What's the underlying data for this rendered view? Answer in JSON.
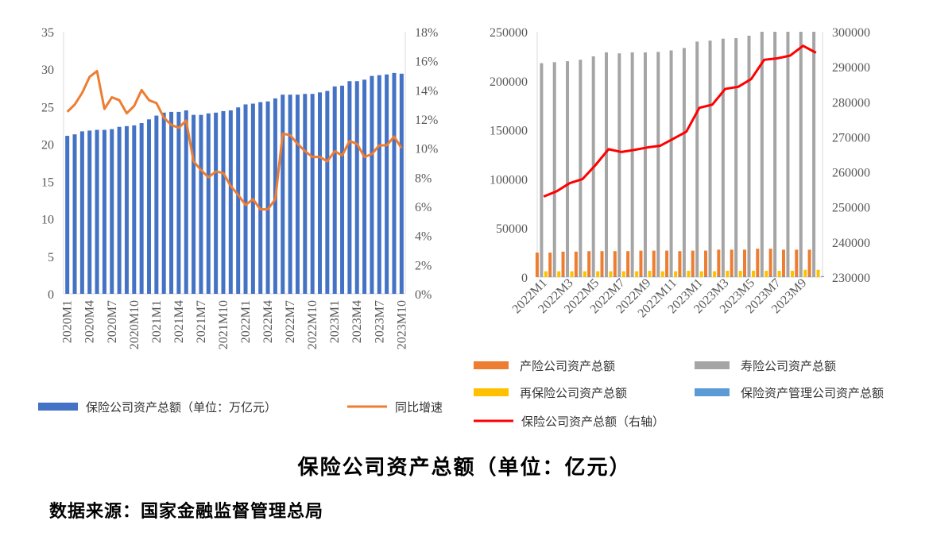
{
  "title": "保险公司资产总额（单位：亿元）",
  "source": "数据来源：国家金融监督管理总局",
  "chart_data": [
    {
      "type": "bar+line",
      "categories": [
        "2020M1",
        "2020M2",
        "2020M3",
        "2020M4",
        "2020M5",
        "2020M6",
        "2020M7",
        "2020M8",
        "2020M9",
        "2020M10",
        "2020M11",
        "2020M12",
        "2021M1",
        "2021M2",
        "2021M3",
        "2021M4",
        "2021M5",
        "2021M6",
        "2021M7",
        "2021M8",
        "2021M9",
        "2021M10",
        "2021M11",
        "2021M12",
        "2022M1",
        "2022M2",
        "2022M3",
        "2022M4",
        "2022M5",
        "2022M6",
        "2022M7",
        "2022M8",
        "2022M9",
        "2022M10",
        "2022M11",
        "2022M12",
        "2023M1",
        "2023M2",
        "2023M3",
        "2023M4",
        "2023M5",
        "2023M6",
        "2023M7",
        "2023M8",
        "2023M9",
        "2023M10"
      ],
      "series": [
        {
          "name": "保险公司资产总额（单位：万亿元）",
          "type": "bar",
          "axis": "left",
          "color": "#4472C4",
          "values": [
            21.1,
            21.3,
            21.7,
            21.8,
            21.9,
            21.9,
            22.0,
            22.3,
            22.4,
            22.5,
            22.8,
            23.3,
            23.8,
            24.2,
            24.3,
            24.3,
            24.5,
            23.9,
            23.9,
            24.1,
            24.2,
            24.4,
            24.5,
            24.9,
            25.3,
            25.4,
            25.6,
            25.7,
            26.1,
            26.6,
            26.6,
            26.6,
            26.7,
            26.7,
            26.9,
            27.1,
            27.7,
            27.8,
            28.4,
            28.4,
            28.6,
            29.1,
            29.2,
            29.3,
            29.5,
            29.4
          ]
        },
        {
          "name": "同比增速",
          "type": "line",
          "axis": "right",
          "color": "#ED7D31",
          "values": [
            12.5,
            13.0,
            13.8,
            14.9,
            15.3,
            12.7,
            13.5,
            13.3,
            12.4,
            12.9,
            14.0,
            13.3,
            13.1,
            12.1,
            11.6,
            11.4,
            11.9,
            9.1,
            8.5,
            8.0,
            8.4,
            8.3,
            7.4,
            6.8,
            6.1,
            6.5,
            5.8,
            5.8,
            6.5,
            11.0,
            10.9,
            10.3,
            9.8,
            9.4,
            9.4,
            9.1,
            9.8,
            9.5,
            10.5,
            10.3,
            9.4,
            9.6,
            10.2,
            10.2,
            10.8,
            10.0
          ]
        }
      ],
      "ylim": [
        0,
        35
      ],
      "yticks": [
        "0",
        "5",
        "10",
        "15",
        "20",
        "25",
        "30",
        "35"
      ],
      "y2lim": [
        0,
        18
      ],
      "y2ticks": [
        "0%",
        "2%",
        "4%",
        "6%",
        "8%",
        "10%",
        "12%",
        "14%",
        "16%",
        "18%"
      ],
      "xtick_labels": [
        "2020M1",
        "2020M4",
        "2020M7",
        "2020M10",
        "2021M1",
        "2021M4",
        "2021M7",
        "2021M10",
        "2022M1",
        "2022M4",
        "2022M7",
        "2022M10",
        "2023M1",
        "2023M4",
        "2023M7",
        "2023M10"
      ],
      "legend": "bottom"
    },
    {
      "type": "bar+line",
      "categories": [
        "2022M1",
        "2022M2",
        "2022M3",
        "2022M4",
        "2022M5",
        "2022M6",
        "2022M7",
        "2022M8",
        "2022M9",
        "2022M10",
        "2022M11",
        "2022M12",
        "2023M1",
        "2023M2",
        "2023M3",
        "2023M4",
        "2023M5",
        "2023M6",
        "2023M7",
        "2023M8",
        "2023M9",
        "2023M10"
      ],
      "series": [
        {
          "name": "产险公司资产总额",
          "type": "bar",
          "axis": "left",
          "color": "#ED7D31",
          "values": [
            25000,
            25000,
            26000,
            26000,
            26500,
            26500,
            26500,
            26500,
            27000,
            27000,
            27000,
            26500,
            27000,
            27000,
            28000,
            28000,
            28000,
            29000,
            29000,
            28000,
            28000,
            28000
          ]
        },
        {
          "name": "寿险公司资产总额",
          "type": "bar",
          "axis": "left",
          "color": "#A5A5A5",
          "values": [
            218000,
            219000,
            220000,
            221500,
            225000,
            229000,
            228000,
            229000,
            229000,
            229500,
            231000,
            233500,
            240000,
            241000,
            243000,
            243500,
            246000,
            251000,
            252000,
            253000,
            254000,
            253000
          ]
        },
        {
          "name": "再保险公司资产总额",
          "type": "bar",
          "axis": "left",
          "color": "#FFC000",
          "values": [
            6000,
            6000,
            6000,
            6000,
            6000,
            6000,
            6000,
            6000,
            6500,
            6000,
            6000,
            6500,
            6000,
            6000,
            6500,
            6500,
            6500,
            6500,
            6500,
            6500,
            7500,
            7500
          ]
        },
        {
          "name": "保险资产管理公司资产总额",
          "type": "bar",
          "axis": "left",
          "color": "#5B9BD5",
          "values": [
            800,
            800,
            800,
            800,
            800,
            800,
            800,
            800,
            800,
            800,
            800,
            800,
            900,
            900,
            900,
            900,
            900,
            900,
            900,
            900,
            1000,
            1000
          ]
        },
        {
          "name": "保险公司资产总额（右轴）",
          "type": "line",
          "axis": "right",
          "color": "#FF0000",
          "values": [
            253000,
            254500,
            256800,
            258000,
            262000,
            266500,
            265700,
            266300,
            267000,
            267500,
            269500,
            271500,
            278300,
            279200,
            283700,
            284300,
            286500,
            292000,
            292400,
            293200,
            296000,
            294000
          ]
        }
      ],
      "ylim": [
        0,
        250000
      ],
      "yticks": [
        "0",
        "50000",
        "100000",
        "150000",
        "200000",
        "250000"
      ],
      "y2lim": [
        230000,
        300000
      ],
      "y2ticks": [
        "230000",
        "240000",
        "250000",
        "260000",
        "270000",
        "280000",
        "290000",
        "300000"
      ],
      "xtick_labels": [
        "2022M1",
        "2022M3",
        "2022M5",
        "2022M7",
        "2022M9",
        "2022M11",
        "2023M1",
        "2023M3",
        "2023M5",
        "2023M7",
        "2023M9"
      ],
      "legend": "bottom"
    }
  ]
}
